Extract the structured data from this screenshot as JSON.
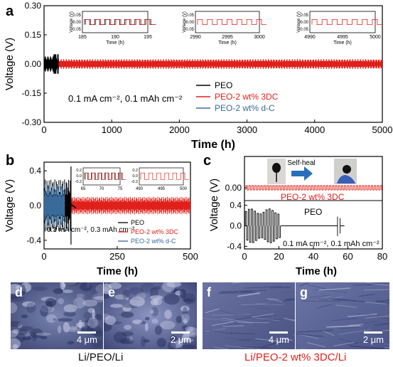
{
  "chart_data": [
    {
      "id": "a",
      "type": "line",
      "panel_label": "a",
      "xlabel": "Time (h)",
      "ylabel": "Voltage (V)",
      "xlim": [
        0,
        5000
      ],
      "ylim": [
        -0.3,
        0.3
      ],
      "xticks": [
        "0",
        "1000",
        "2000",
        "3000",
        "4000",
        "5000"
      ],
      "yticks": [
        "0.30",
        "0.15",
        "0.00",
        "-0.15",
        "-0.30"
      ],
      "annotation": "0.1 mA cm⁻², 0.1 mAh cm⁻²",
      "legend": [
        "PEO",
        "PEO-2 wt% 3DC",
        "PEO-2 wt% d-C"
      ],
      "legend_position": "right",
      "series": [
        {
          "name": "PEO",
          "color": "#000000",
          "x_range": [
            0,
            200
          ],
          "amplitude": 0.04
        },
        {
          "name": "PEO-2 wt% 3DC",
          "color": "#e0201b",
          "x_range": [
            0,
            5000
          ],
          "amplitude": 0.025
        },
        {
          "name": "PEO-2 wt% d-C",
          "color": "#3a6a9a",
          "x_range": [
            0,
            180
          ],
          "amplitude": 0.035
        }
      ],
      "insets": [
        {
          "xlabel": "Time (h)",
          "ylabel": "Voltage (V)",
          "xticks": [
            "185",
            "190",
            "195"
          ],
          "yticks": [
            "0.05",
            "0.00",
            "-0.05"
          ],
          "series_color": [
            "#000000",
            "#e0201b"
          ]
        },
        {
          "xlabel": "Time (h)",
          "ylabel": "Voltage (V)",
          "xticks": [
            "2990",
            "2995",
            "3000"
          ],
          "yticks": [
            "0.05",
            "0.00",
            "-0.05"
          ],
          "series_color": [
            "#e0201b"
          ]
        },
        {
          "xlabel": "Time (h)",
          "ylabel": "Voltage (V)",
          "xticks": [
            "4990",
            "4995",
            "5000"
          ],
          "yticks": [
            "0.05",
            "0.00",
            "-0.05"
          ],
          "series_color": [
            "#e0201b"
          ]
        }
      ]
    },
    {
      "id": "b",
      "type": "line",
      "panel_label": "b",
      "xlabel": "Time (h)",
      "ylabel": "Voltage (V)",
      "xlim": [
        0,
        500
      ],
      "ylim": [
        -0.5,
        0.5
      ],
      "xticks": [
        "0",
        "250",
        "500"
      ],
      "yticks": [
        "0.4",
        "0.0",
        "-0.4"
      ],
      "annotation": "0.3 mA cm⁻², 0.3 mAh cm⁻²",
      "legend": [
        "PEO",
        "PEO-2 wt% 3DC",
        "PEO-2 wt% d-C"
      ],
      "legend_position": "bottom-right",
      "series": [
        {
          "name": "PEO",
          "color": "#000000",
          "x_range": [
            0,
            90
          ],
          "amplitude": 0.3
        },
        {
          "name": "PEO-2 wt% 3DC",
          "color": "#e0201b",
          "x_range": [
            0,
            500
          ],
          "amplitude": 0.1
        },
        {
          "name": "PEO-2 wt% d-C",
          "color": "#3a6a9a",
          "x_range": [
            0,
            70
          ],
          "amplitude": 0.25
        }
      ],
      "insets": [
        {
          "xticks": [
            "65",
            "70",
            "75"
          ],
          "yticks": [
            "0.2",
            "0.0",
            "-0.2"
          ],
          "series_color": [
            "#000000",
            "#e0201b"
          ]
        },
        {
          "xticks": [
            "490",
            "495",
            "500"
          ],
          "yticks": [
            "0.2",
            "0.0",
            "-0.2"
          ],
          "series_color": [
            "#e0201b"
          ]
        }
      ]
    },
    {
      "id": "c",
      "type": "line",
      "panel_label": "c",
      "xlabel": "Time (h)",
      "ylabel": "Voltage (V)",
      "xlim": [
        0,
        80
      ],
      "xticks": [
        "0",
        "20",
        "40",
        "60",
        "80"
      ],
      "top": {
        "yticks": [
          "0.00"
        ],
        "label": "PEO-2 wt% 3DC",
        "color": "#e0201b",
        "photo_label": "Self-heal"
      },
      "bottom": {
        "yticks": [
          "0.4",
          "0.0",
          "-0.4"
        ],
        "label": "PEO",
        "color": "#000000",
        "annotation": "0.1 mA cm⁻², 0.1 mAh cm⁻²"
      }
    }
  ],
  "sem": [
    {
      "letter": "d",
      "scale": "4 μm"
    },
    {
      "letter": "e",
      "scale": "2 μm"
    },
    {
      "letter": "f",
      "scale": "4 μm"
    },
    {
      "letter": "g",
      "scale": "2 μm"
    }
  ],
  "captions": {
    "left": "Li/PEO/Li",
    "right": "Li/PEO-2 wt% 3DC/Li",
    "right_color": "#e0201b"
  }
}
